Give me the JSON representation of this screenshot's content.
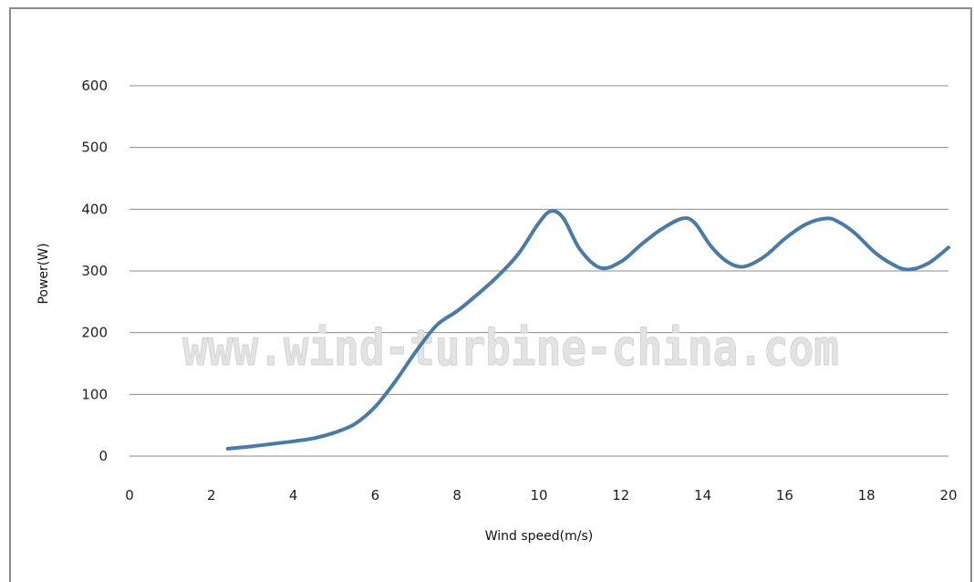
{
  "watermark": "www.wind-turbine-china.com",
  "chart_data": {
    "type": "line",
    "title": "",
    "xlabel": "Wind speed(m/s)",
    "ylabel": "Power(W)",
    "xlim": [
      0,
      20
    ],
    "ylim": [
      0,
      600
    ],
    "xticks": [
      0,
      2,
      4,
      6,
      8,
      10,
      12,
      14,
      16,
      18,
      20
    ],
    "yticks": [
      0,
      100,
      200,
      300,
      400,
      500,
      600
    ],
    "grid": true,
    "legend": "none",
    "colors": {
      "line": "#4a7ba6",
      "grid": "#8c8c8c"
    },
    "series": [
      {
        "x": [
          2.4,
          3,
          3.5,
          4,
          4.5,
          5,
          5.5,
          6,
          6.5,
          7,
          7.5,
          8,
          8.5,
          9,
          9.5,
          10,
          10.3,
          10.6,
          11,
          11.5,
          12,
          12.5,
          13,
          13.5,
          13.8,
          14.2,
          14.6,
          15,
          15.5,
          16,
          16.5,
          17,
          17.3,
          17.7,
          18.2,
          18.6,
          19,
          19.5,
          20
        ],
        "y": [
          12,
          16,
          20,
          24,
          29,
          38,
          52,
          80,
          122,
          170,
          212,
          235,
          262,
          292,
          328,
          378,
          397,
          385,
          335,
          305,
          315,
          343,
          368,
          385,
          378,
          340,
          315,
          307,
          323,
          352,
          375,
          385,
          380,
          362,
          330,
          312,
          302,
          312,
          338
        ]
      }
    ]
  }
}
